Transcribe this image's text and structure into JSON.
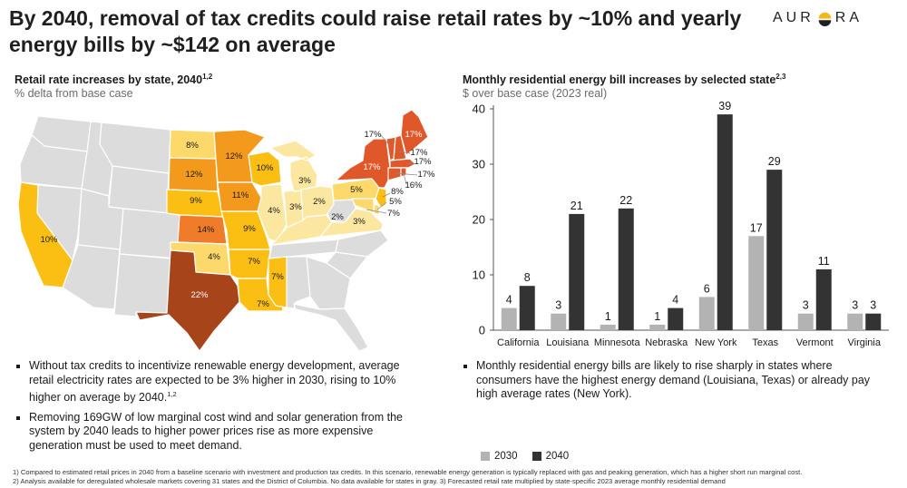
{
  "header": {
    "title": "By 2040, removal of tax credits could raise retail rates by ~10% and yearly energy bills by ~$142 on average",
    "brand": "AURORA",
    "brand_left": "AUR",
    "brand_right": "RA"
  },
  "map_panel": {
    "title": "Retail rate increases by state, 2040",
    "title_sup": "1,2",
    "subtitle": "% delta from base case",
    "labels": {
      "california": "10%",
      "north_dakota": "8%",
      "south_dakota": "12%",
      "minnesota": "12%",
      "wisconsin": "10%",
      "nebraska": "9%",
      "iowa": "11%",
      "kansas": "14%",
      "missouri": "9%",
      "illinois": "4%",
      "indiana": "3%",
      "ohio": "2%",
      "michigan": "3%",
      "kentucky": "2%",
      "virginia": "3%",
      "pennsylvania": "5%",
      "oklahoma": "4%",
      "arkansas": "7%",
      "mississippi": "7%",
      "louisiana": "7%",
      "texas": "22%",
      "new_york": "17%",
      "vermont": "17%",
      "maine": "17%",
      "new_hampshire": "17%",
      "massachusetts": "17%",
      "connecticut": "17%",
      "rhode_island": "16%",
      "new_jersey": "8%",
      "delaware": "5%",
      "maryland": "7%"
    }
  },
  "chart_panel": {
    "title": "Monthly residential energy bill increases by selected state",
    "title_sup": "2,3",
    "subtitle": "$ over base case (2023 real)"
  },
  "chart_data": {
    "type": "bar",
    "title": "Monthly residential energy bill increases by selected state",
    "categories": [
      "California",
      "Louisiana",
      "Minnesota",
      "Nebraska",
      "New York",
      "Texas",
      "Vermont",
      "Virginia"
    ],
    "series": [
      {
        "name": "2030",
        "color": "#b3b3b3",
        "values": [
          4,
          3,
          1,
          1,
          6,
          17,
          3,
          3
        ]
      },
      {
        "name": "2040",
        "color": "#333333",
        "values": [
          8,
          21,
          22,
          4,
          39,
          29,
          11,
          3
        ]
      }
    ],
    "ylim": [
      0,
      40
    ],
    "yticks": [
      0,
      10,
      20,
      30,
      40
    ],
    "ylabel": "",
    "xlabel": "",
    "legend": "bottom"
  },
  "left_bullets": [
    {
      "text": "Without tax credits to incentivize renewable energy development, average retail electricity rates are expected to be 3% higher in 2030, rising to 10% higher on average by 2040.",
      "sup": "1,2"
    },
    {
      "text": "Removing 169GW of low marginal cost wind and solar generation from the system by 2040 leads to higher power prices rise as more expensive generation must be used to meet demand.",
      "sup": ""
    }
  ],
  "right_bullets": [
    {
      "text": "Monthly residential energy bills are likely to rise sharply in states where consumers have the highest energy demand (Louisiana, Texas) or already pay high average rates (New York).",
      "sup": ""
    }
  ],
  "footnotes": [
    "1) Compared to estimated retail prices in 2040 from a baseline scenario with investment and production tax credits. In this scenario, renewable energy generation is typically replaced with gas and peaking generation, which has a higher short run marginal cost.",
    "2) Analysis available for deregulated wholesale markets covering 31 states and the District of Columbia. No data available for states in gray. 3) Forecasted retail rate multiplied by state-specific 2023 average monthly residential demand"
  ],
  "colors": {
    "no_data": "#dcdcdc",
    "low": "#fbe7a0",
    "mid_low": "#fcd96a",
    "mid": "#fbbf14",
    "mid_high": "#f39a1c",
    "high": "#f07b28",
    "very_high": "#e0582a",
    "max": "#a8441a",
    "brand_sun": "#f5b617"
  }
}
